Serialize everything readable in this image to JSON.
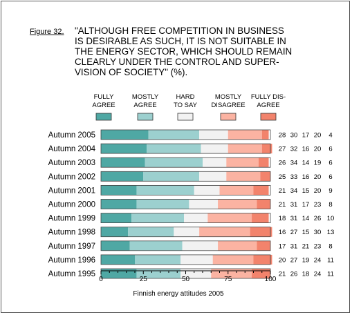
{
  "figure_label": "Figure 32.",
  "title": "\"ALTHOUGH FREE COMPETITION IN BUSINESS\nIS DESIRABLE AS SUCH, IT IS NOT SUITABLE IN\nTHE ENERGY SECTOR, WHICH SHOULD REMAIN\nCLEARLY UNDER THE CONTROL AND SUPER-\nVISION OF SOCIETY\" (%).",
  "chart_data": {
    "type": "bar",
    "orientation": "horizontal",
    "stacked": true,
    "categories": [
      "Autumn 2005",
      "Autumn 2004",
      "Autumn 2003",
      "Autumn 2002",
      "Autumn 2001",
      "Autumn 2000",
      "Autumn 1999",
      "Autumn 1998",
      "Autumn 1997",
      "Autumn 1996",
      "Autumn 1995"
    ],
    "series": [
      {
        "name": "FULLY\nAGREE",
        "color": "#4fa8a4",
        "values": [
          28,
          27,
          26,
          25,
          21,
          21,
          18,
          16,
          17,
          20,
          21
        ]
      },
      {
        "name": "MOSTLY\nAGREE",
        "color": "#9cd0cf",
        "values": [
          30,
          32,
          34,
          33,
          34,
          31,
          31,
          27,
          31,
          27,
          26
        ]
      },
      {
        "name": "HARD\nTO SAY",
        "color": "#f2f2f2",
        "values": [
          17,
          16,
          14,
          16,
          15,
          17,
          14,
          15,
          21,
          19,
          18
        ]
      },
      {
        "name": "MOSTLY\nDISAGREE",
        "color": "#fbb3a2",
        "values": [
          20,
          20,
          19,
          20,
          20,
          23,
          26,
          30,
          23,
          24,
          24
        ]
      },
      {
        "name": "FULLY DIS-\nAGREE",
        "color": "#f2836c",
        "values": [
          4,
          6,
          6,
          6,
          9,
          8,
          10,
          13,
          8,
          11,
          11
        ]
      }
    ],
    "xlim": [
      0,
      100
    ],
    "xticks": [
      0,
      25,
      50,
      75,
      100
    ],
    "xlabel": "Finnish energy attitudes 2005",
    "legend_position": "top",
    "data_labels_position": "right"
  }
}
